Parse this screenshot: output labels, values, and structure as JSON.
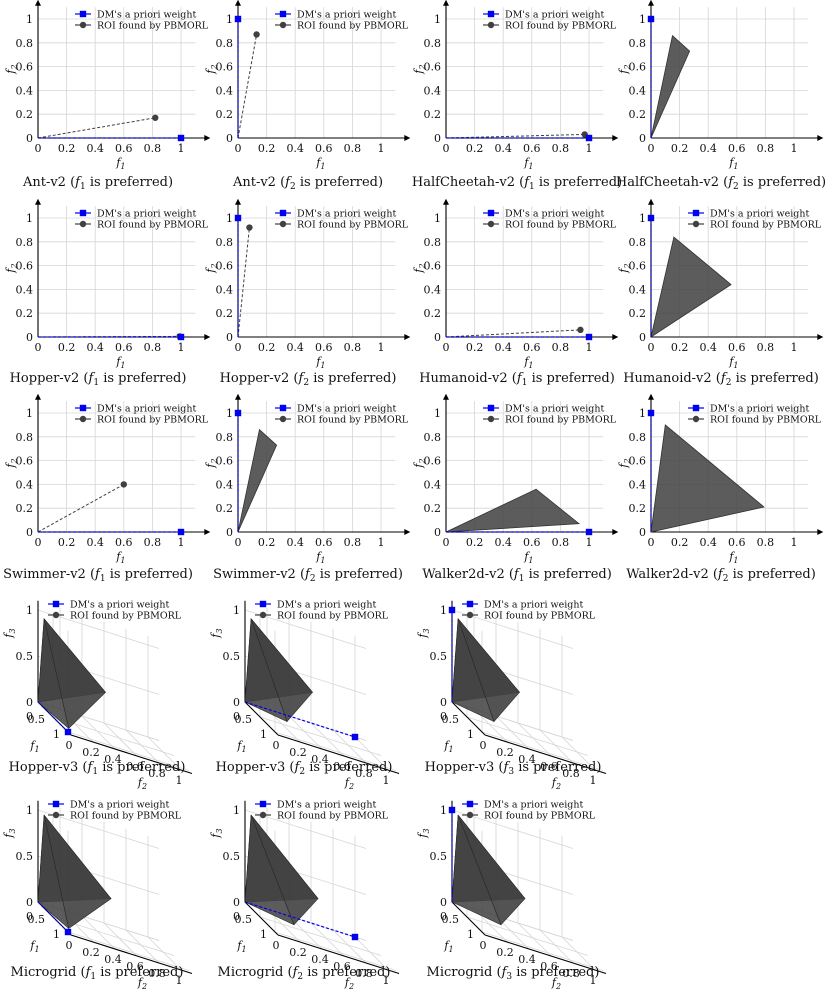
{
  "legend": {
    "weight_label": "DM's a priori weight",
    "roi_label": "ROI found by PBMORL"
  },
  "colors": {
    "weight": "#0000ee",
    "roi": "#404040",
    "grid": "#d6d6d6"
  },
  "chart_data": [
    {
      "id": "ant-f1",
      "type": "scatter",
      "caption": "Ant-v2 (f1 is preferred)",
      "caption_base": "Ant-v2 (",
      "caption_var": "f",
      "caption_sub": "1",
      "caption_end": " is preferred)",
      "xlabel": "f1",
      "ylabel": "f2",
      "xlim": [
        0,
        1
      ],
      "ylim": [
        0,
        1
      ],
      "xticks": [
        "0",
        "0.2",
        "0.4",
        "0.6",
        "0.8",
        "1"
      ],
      "yticks": [
        "0",
        "0.2",
        "0.4",
        "0.6",
        "0.8",
        "1"
      ],
      "grid": true,
      "legend": "top-right",
      "weight": [
        1,
        0
      ],
      "roi_kind": "point",
      "roi": [
        [
          0.82,
          0.17
        ]
      ]
    },
    {
      "id": "ant-f2",
      "type": "scatter",
      "caption": "Ant-v2 (f2 is preferred)",
      "caption_base": "Ant-v2 (",
      "caption_var": "f",
      "caption_sub": "2",
      "caption_end": " is preferred)",
      "xlabel": "f1",
      "ylabel": "f2",
      "xlim": [
        0,
        1
      ],
      "ylim": [
        0,
        1
      ],
      "xticks": [
        "0",
        "0.2",
        "0.4",
        "0.6",
        "0.8",
        "1"
      ],
      "yticks": [
        "0",
        "0.2",
        "0.4",
        "0.6",
        "0.8",
        "1"
      ],
      "grid": true,
      "legend": "top-right",
      "weight": [
        0,
        1
      ],
      "roi_kind": "point",
      "roi": [
        [
          0.13,
          0.87
        ]
      ]
    },
    {
      "id": "hc-f1",
      "type": "scatter",
      "caption": "HalfCheetah-v2 (f1 is preferred)",
      "caption_base": "HalfCheetah-v2 (",
      "caption_var": "f",
      "caption_sub": "1",
      "caption_end": " is preferred)",
      "xlabel": "f1",
      "ylabel": "f2",
      "xlim": [
        0,
        1
      ],
      "ylim": [
        0,
        1
      ],
      "xticks": [
        "0",
        "0.2",
        "0.4",
        "0.6",
        "0.8",
        "1"
      ],
      "yticks": [
        "0",
        "0.2",
        "0.4",
        "0.6",
        "0.8",
        "1"
      ],
      "grid": true,
      "legend": "top-right",
      "weight": [
        1,
        0
      ],
      "roi_kind": "point",
      "roi": [
        [
          0.97,
          0.03
        ]
      ]
    },
    {
      "id": "hc-f2",
      "type": "area",
      "caption": "HalfCheetah-v2 (f2 is preferred)",
      "caption_base": "HalfCheetah-v2 (",
      "caption_var": "f",
      "caption_sub": "2",
      "caption_end": " is preferred)",
      "xlabel": "f1",
      "ylabel": "f2",
      "xlim": [
        0,
        1
      ],
      "ylim": [
        0,
        1
      ],
      "xticks": [
        "0",
        "0.2",
        "0.4",
        "0.6",
        "0.8",
        "1"
      ],
      "yticks": [
        "0",
        "0.2",
        "0.4",
        "0.6",
        "0.8",
        "1"
      ],
      "grid": true,
      "legend": "none",
      "weight": [
        0,
        1
      ],
      "roi_kind": "polygon",
      "roi": [
        [
          0,
          0
        ],
        [
          0.15,
          0.86
        ],
        [
          0.27,
          0.73
        ]
      ]
    },
    {
      "id": "hop-f1",
      "type": "scatter",
      "caption": "Hopper-v2 (f1 is preferred)",
      "caption_base": "Hopper-v2 (",
      "caption_var": "f",
      "caption_sub": "1",
      "caption_end": "  is preferred)",
      "xlabel": "f1",
      "ylabel": "f2",
      "xlim": [
        0,
        1
      ],
      "ylim": [
        0,
        1
      ],
      "xticks": [
        "0",
        "0.2",
        "0.4",
        "0.6",
        "0.8",
        "1"
      ],
      "yticks": [
        "0",
        "0.2",
        "0.4",
        "0.6",
        "0.8",
        "1"
      ],
      "grid": true,
      "legend": "top-right",
      "weight": [
        1,
        0
      ],
      "roi_kind": "point",
      "roi": [
        [
          0.99,
          0.005
        ]
      ]
    },
    {
      "id": "hop-f2",
      "type": "scatter",
      "caption": "Hopper-v2 (f2 is preferred)",
      "caption_base": "Hopper-v2 (",
      "caption_var": "f",
      "caption_sub": "2",
      "caption_end": "  is preferred)",
      "xlabel": "f1",
      "ylabel": "f2",
      "xlim": [
        0,
        1
      ],
      "ylim": [
        0,
        1
      ],
      "xticks": [
        "0",
        "0.2",
        "0.4",
        "0.6",
        "0.8",
        "1"
      ],
      "yticks": [
        "0",
        "0.2",
        "0.4",
        "0.6",
        "0.8",
        "1"
      ],
      "grid": true,
      "legend": "top-right",
      "weight": [
        0,
        1
      ],
      "roi_kind": "point",
      "roi": [
        [
          0.08,
          0.92
        ]
      ]
    },
    {
      "id": "hum-f1",
      "type": "scatter",
      "caption": "Humanoid-v2 (f1 is preferred)",
      "caption_base": "Humanoid-v2 (",
      "caption_var": "f",
      "caption_sub": "1",
      "caption_end": " is preferred)",
      "xlabel": "f1",
      "ylabel": "f2",
      "xlim": [
        0,
        1
      ],
      "ylim": [
        0,
        1
      ],
      "xticks": [
        "0",
        "0.2",
        "0.4",
        "0.6",
        "0.8",
        "1"
      ],
      "yticks": [
        "0",
        "0.2",
        "0.4",
        "0.6",
        "0.8",
        "1"
      ],
      "grid": true,
      "legend": "top-right",
      "weight": [
        1,
        0
      ],
      "roi_kind": "point",
      "roi": [
        [
          0.94,
          0.06
        ]
      ]
    },
    {
      "id": "hum-f2",
      "type": "area",
      "caption": "Humanoid-v2 (f2 is preferred)",
      "caption_base": "Humanoid-v2 (",
      "caption_var": "f",
      "caption_sub": "2",
      "caption_end": " is preferred)",
      "xlabel": "f1",
      "ylabel": "f2",
      "xlim": [
        0,
        1
      ],
      "ylim": [
        0,
        1
      ],
      "xticks": [
        "0",
        "0.2",
        "0.4",
        "0.6",
        "0.8",
        "1"
      ],
      "yticks": [
        "0",
        "0.2",
        "0.4",
        "0.6",
        "0.8",
        "1"
      ],
      "grid": true,
      "legend": "top-right",
      "weight": [
        0,
        1
      ],
      "roi_kind": "polygon",
      "roi": [
        [
          0,
          0
        ],
        [
          0.16,
          0.84
        ],
        [
          0.56,
          0.44
        ]
      ]
    },
    {
      "id": "sw-f1",
      "type": "scatter",
      "caption": "Swimmer-v2 (f1 is preferred)",
      "caption_base": "Swimmer-v2 (",
      "caption_var": "f",
      "caption_sub": "1",
      "caption_end": " is preferred)",
      "xlabel": "f1",
      "ylabel": "f2",
      "xlim": [
        0,
        1
      ],
      "ylim": [
        0,
        1
      ],
      "xticks": [
        "0",
        "0.2",
        "0.4",
        "0.6",
        "0.8",
        "1"
      ],
      "yticks": [
        "0",
        "0.2",
        "0.4",
        "0.6",
        "0.8",
        "1"
      ],
      "grid": true,
      "legend": "top-right",
      "weight": [
        1,
        0
      ],
      "roi_kind": "point",
      "roi": [
        [
          0.6,
          0.4
        ]
      ]
    },
    {
      "id": "sw-f2",
      "type": "area",
      "caption": "Swimmer-v2 (f2 is preferred)",
      "caption_base": "Swimmer-v2 (",
      "caption_var": "f",
      "caption_sub": "2",
      "caption_end": " is preferred)",
      "xlabel": "f1",
      "ylabel": "f2",
      "xlim": [
        0,
        1
      ],
      "ylim": [
        0,
        1
      ],
      "xticks": [
        "0",
        "0.2",
        "0.4",
        "0.6",
        "0.8",
        "1"
      ],
      "yticks": [
        "0",
        "0.2",
        "0.4",
        "0.6",
        "0.8",
        "1"
      ],
      "grid": true,
      "legend": "top-right",
      "weight": [
        0,
        1
      ],
      "roi_kind": "polygon",
      "roi": [
        [
          0,
          0
        ],
        [
          0.15,
          0.86
        ],
        [
          0.27,
          0.73
        ]
      ]
    },
    {
      "id": "wk-f1",
      "type": "area",
      "caption": "Walker2d-v2 (f1 is preferred)",
      "caption_base": "Walker2d-v2 (",
      "caption_var": "f",
      "caption_sub": "1",
      "caption_end": " is preferred)",
      "xlabel": "f1",
      "ylabel": "f2",
      "xlim": [
        0,
        1
      ],
      "ylim": [
        0,
        1
      ],
      "xticks": [
        "0",
        "0.2",
        "0.4",
        "0.6",
        "0.8",
        "1"
      ],
      "yticks": [
        "0",
        "0.2",
        "0.4",
        "0.6",
        "0.8",
        "1"
      ],
      "grid": true,
      "legend": "top-right",
      "weight": [
        1,
        0
      ],
      "roi_kind": "polygon",
      "roi": [
        [
          0,
          0
        ],
        [
          0.63,
          0.36
        ],
        [
          0.93,
          0.07
        ]
      ]
    },
    {
      "id": "wk-f2",
      "type": "area",
      "caption": "Walker2d-v2 (f2 is preferred)",
      "caption_base": "Walker2d-v2 (",
      "caption_var": "f",
      "caption_sub": "2",
      "caption_end": " is preferred)",
      "xlabel": "f1",
      "ylabel": "f2",
      "xlim": [
        0,
        1
      ],
      "ylim": [
        0,
        1
      ],
      "xticks": [
        "0",
        "0.2",
        "0.4",
        "0.6",
        "0.8",
        "1"
      ],
      "yticks": [
        "0",
        "0.2",
        "0.4",
        "0.6",
        "0.8",
        "1"
      ],
      "grid": true,
      "legend": "top-right",
      "weight": [
        0,
        1
      ],
      "roi_kind": "polygon",
      "roi": [
        [
          0,
          0
        ],
        [
          0.1,
          0.9
        ],
        [
          0.79,
          0.21
        ]
      ]
    },
    {
      "id": "hop3-f1",
      "type": "area",
      "caption": "Hopper-v3 (f1 is preferred)",
      "caption_base": "Hopper-v3 (",
      "caption_var": "f",
      "caption_sub": "1",
      "caption_end": " is preferred)",
      "xlabel": "f1",
      "ylabel": "f2",
      "zlabel": "f3",
      "xticks": [
        "0",
        "0.5",
        "1"
      ],
      "yticks": [
        "0",
        "0.2",
        "0.4",
        "0.6",
        "0.8",
        "1"
      ],
      "zticks": [
        "0",
        "0.5",
        "1"
      ],
      "grid": true,
      "legend": "top-right",
      "weight": [
        1,
        0,
        0
      ],
      "roi": [
        [
          0,
          0,
          0
        ],
        [
          0.02,
          0.05,
          0.93
        ],
        [
          0.05,
          0.6,
          0.35
        ],
        [
          0.95,
          0.02,
          0.03
        ]
      ]
    },
    {
      "id": "hop3-f2",
      "type": "area",
      "caption": "Hopper-v3 (f2 is preferred)",
      "caption_base": "Hopper-v3 (",
      "caption_var": "f",
      "caption_sub": "2",
      "caption_end": " is preferred)",
      "xlabel": "f1",
      "ylabel": "f2",
      "zlabel": "f3",
      "xticks": [
        "0",
        "0.5",
        "1"
      ],
      "yticks": [
        "0",
        "0.2",
        "0.4",
        "0.6",
        "0.8",
        "1"
      ],
      "zticks": [
        "0",
        "0.5",
        "1"
      ],
      "grid": true,
      "legend": "top-right",
      "weight": [
        0,
        1,
        0
      ],
      "roi": [
        [
          0,
          0,
          0
        ],
        [
          0.02,
          0.05,
          0.93
        ],
        [
          0.05,
          0.6,
          0.35
        ],
        [
          0.3,
          0.3,
          0.0
        ]
      ]
    },
    {
      "id": "hop3-f3",
      "type": "area",
      "caption": "Hopper-v3 (f3 is preferred)",
      "caption_base": "Hopper-v3 (",
      "caption_var": "f",
      "caption_sub": "3",
      "caption_end": " is preferred)",
      "xlabel": "f1",
      "ylabel": "f2",
      "zlabel": "f3",
      "xticks": [
        "0",
        "0.5",
        "1"
      ],
      "yticks": [
        "0",
        "0.2",
        "0.4",
        "0.6",
        "0.8",
        "1"
      ],
      "zticks": [
        "0",
        "0.5",
        "1"
      ],
      "grid": true,
      "legend": "top-right",
      "weight": [
        0,
        0,
        1
      ],
      "roi": [
        [
          0,
          0,
          0
        ],
        [
          0.02,
          0.05,
          0.93
        ],
        [
          0.05,
          0.6,
          0.35
        ],
        [
          0.3,
          0.3,
          0.0
        ]
      ]
    },
    {
      "id": "mg-f1",
      "type": "area",
      "caption": "Microgrid (f1 is preferred)",
      "caption_base": "Microgrid  (",
      "caption_var": "f",
      "caption_sub": "1",
      "caption_end": " is preferred)",
      "xlabel": "f1",
      "ylabel": "f2",
      "zlabel": "f3",
      "xticks": [
        "0",
        "0.5",
        "1"
      ],
      "yticks": [
        "0",
        "0.2",
        "0.4",
        "0.6",
        "0.8",
        "1"
      ],
      "zticks": [
        "0",
        "0.5",
        "1"
      ],
      "grid": true,
      "legend": "top-right",
      "weight": [
        1,
        0,
        0
      ],
      "roi": [
        [
          0,
          0,
          0
        ],
        [
          0.02,
          0.05,
          0.97
        ],
        [
          0.05,
          0.65,
          0.3
        ],
        [
          0.95,
          0.02,
          0.03
        ]
      ]
    },
    {
      "id": "mg-f2",
      "type": "area",
      "caption": "Microgrid (f2 is preferred)",
      "caption_base": "Microgrid  (",
      "caption_var": "f",
      "caption_sub": "2",
      "caption_end": " is preferred)",
      "xlabel": "f1",
      "ylabel": "f2",
      "zlabel": "f3",
      "xticks": [
        "0",
        "0.5",
        "1"
      ],
      "yticks": [
        "0",
        "0.2",
        "0.4",
        "0.6",
        "0.8",
        "1"
      ],
      "zticks": [
        "0",
        "0.5",
        "1"
      ],
      "grid": true,
      "legend": "top-right",
      "weight": [
        0,
        1,
        0
      ],
      "roi": [
        [
          0,
          0,
          0
        ],
        [
          0.02,
          0.05,
          0.97
        ],
        [
          0.05,
          0.65,
          0.3
        ],
        [
          0.35,
          0.35,
          0.0
        ]
      ]
    },
    {
      "id": "mg-f3",
      "type": "area",
      "caption": "Microgrid (f3 is preferred)",
      "caption_base": "Microgrid  (",
      "caption_var": "f",
      "caption_sub": "3",
      "caption_end": " is preferred)",
      "xlabel": "f1",
      "ylabel": "f2",
      "zlabel": "f3",
      "xticks": [
        "0",
        "0.5",
        "1"
      ],
      "yticks": [
        "0",
        "0.2",
        "0.4",
        "0.6",
        "0.8",
        "1"
      ],
      "zticks": [
        "0",
        "0.5",
        "1"
      ],
      "grid": true,
      "legend": "top-right",
      "weight": [
        0,
        0,
        1
      ],
      "roi": [
        [
          0,
          0,
          0
        ],
        [
          0.02,
          0.05,
          0.97
        ],
        [
          0.05,
          0.65,
          0.3
        ],
        [
          0.35,
          0.35,
          0.0
        ]
      ]
    }
  ]
}
